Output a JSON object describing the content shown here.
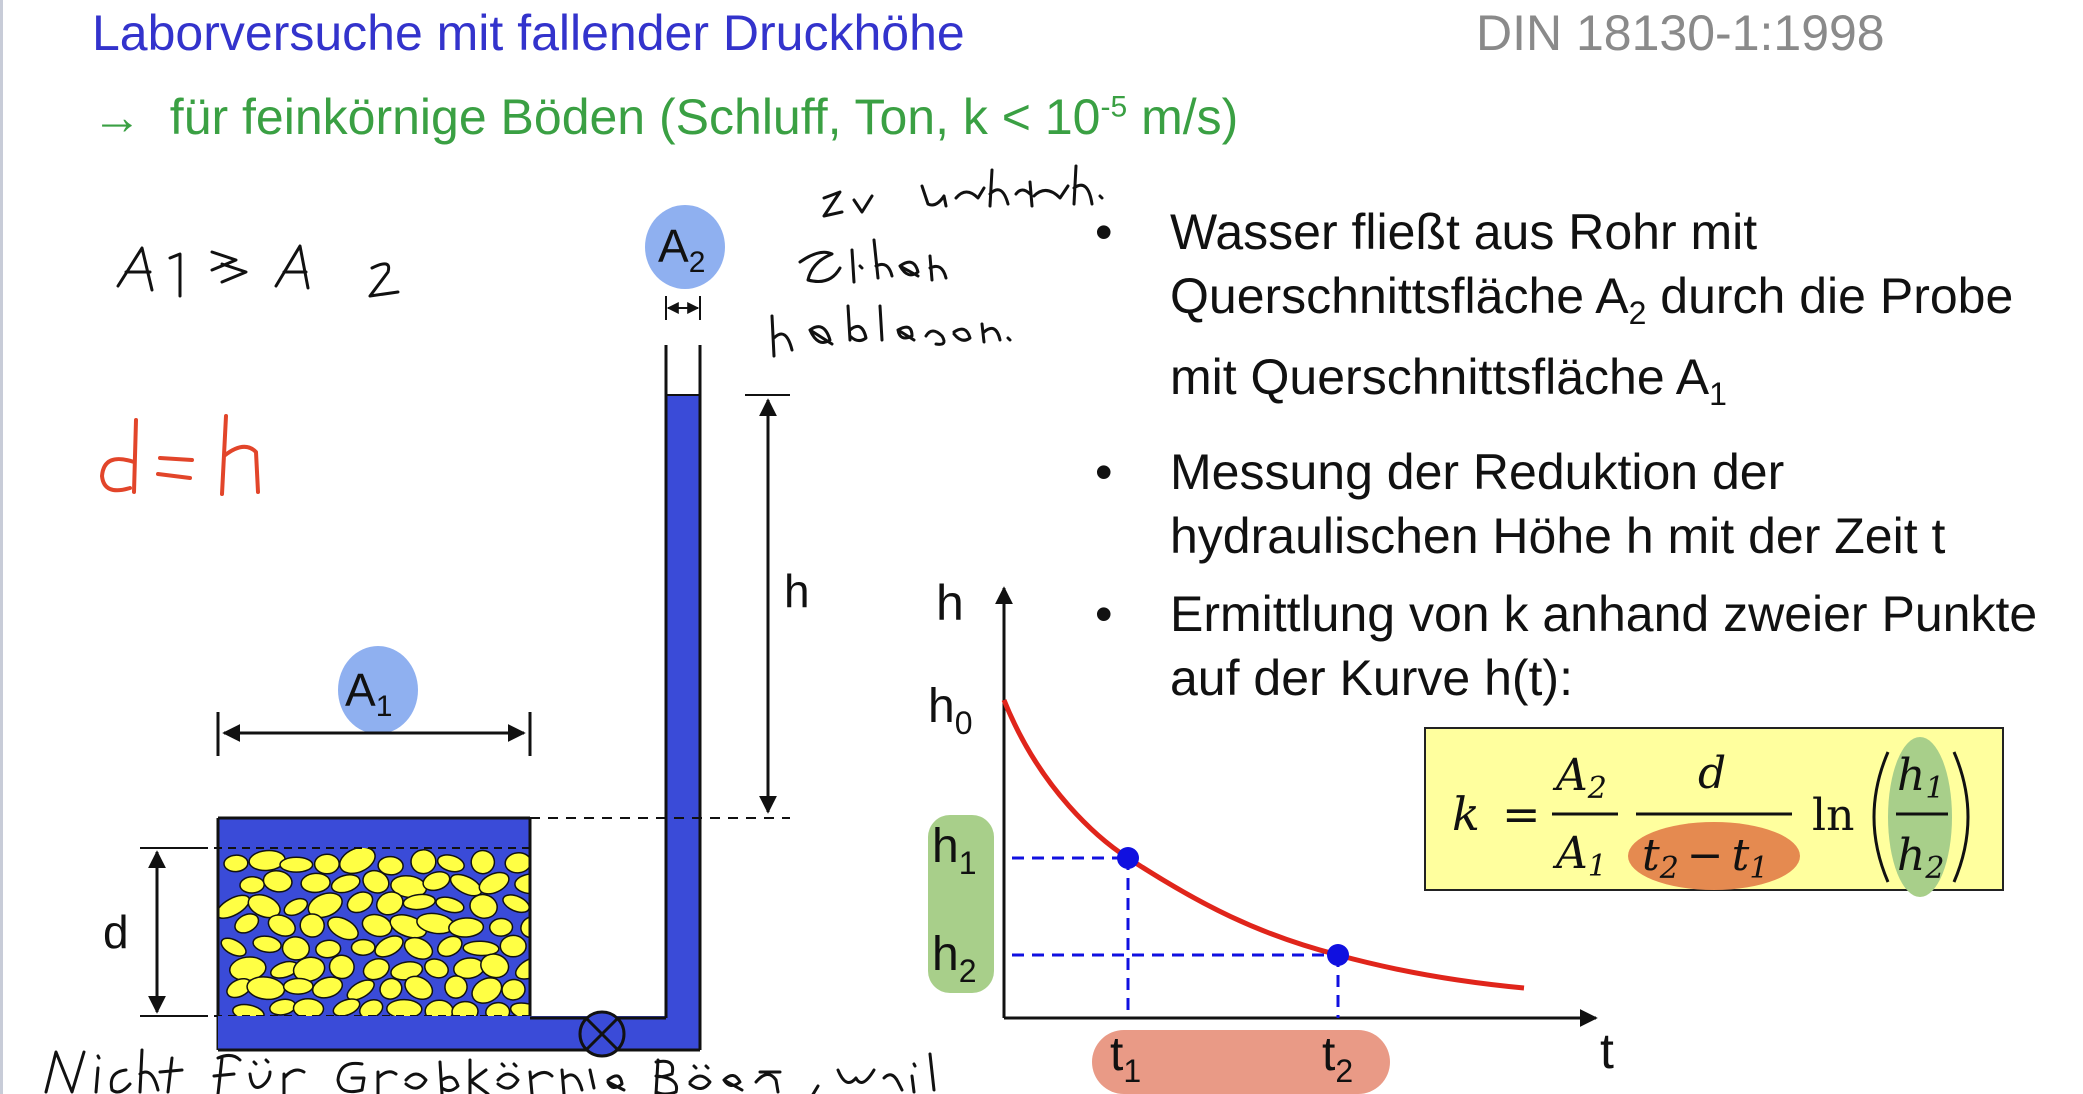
{
  "header": {
    "title": "Laborversuche mit fallender Druckhöhe",
    "standard": "DIN 18130-1:1998",
    "subtitle_arrow": "→",
    "subtitle_main": "für feinkörnige Böden (Schluff, Ton, k < 10",
    "subtitle_exp": "-5",
    "subtitle_tail": " m/s)"
  },
  "bullets": [
    {
      "parts": [
        "Wasser fließt aus Rohr mit Querschnittsfläche A",
        "2",
        " durch die Probe mit Querschnittsfläche A",
        "1"
      ]
    },
    {
      "parts": [
        "Messung der Reduktion der hydraulischen Höhe h mit der Zeit t"
      ]
    },
    {
      "parts": [
        "Ermittlung von k anhand zweier Punkte auf der Kurve h(t):"
      ]
    }
  ],
  "bullet_symbol": "•",
  "apparatus": {
    "label_A2": "A",
    "label_A2_sub": "2",
    "label_A1": "A",
    "label_A1_sub": "1",
    "label_h": "h",
    "label_d": "d",
    "water_color": "#3a4bd8",
    "grain_color": "#ffff44"
  },
  "graph": {
    "y_axis": "h",
    "x_axis": "t",
    "y_ticks": [
      {
        "main": "h",
        "sub": "0"
      },
      {
        "main": "h",
        "sub": "1"
      },
      {
        "main": "h",
        "sub": "2"
      }
    ],
    "x_ticks": [
      {
        "main": "t",
        "sub": "1"
      },
      {
        "main": "t",
        "sub": "2"
      }
    ],
    "curve_color": "#e0251b",
    "point_color": "#1010e0"
  },
  "formula": {
    "k": "k",
    "eq": "=",
    "a2": "A",
    "a2_sub": "2",
    "a1": "A",
    "a1_sub": "1",
    "d": "d",
    "t2": "t",
    "t2_sub": "2",
    "minus": "−",
    "t1": "t",
    "t1_sub": "1",
    "ln": "ln",
    "h1": "h",
    "h1_sub": "1",
    "h2": "h",
    "h2_sub": "2"
  },
  "highlights": {
    "blue": "#8fb0f0",
    "green": "#a8cf8a",
    "orange": "#e58a50",
    "salmon": "#e99a86"
  },
  "ink": {
    "black": "#111111",
    "red": "#e2452a"
  }
}
